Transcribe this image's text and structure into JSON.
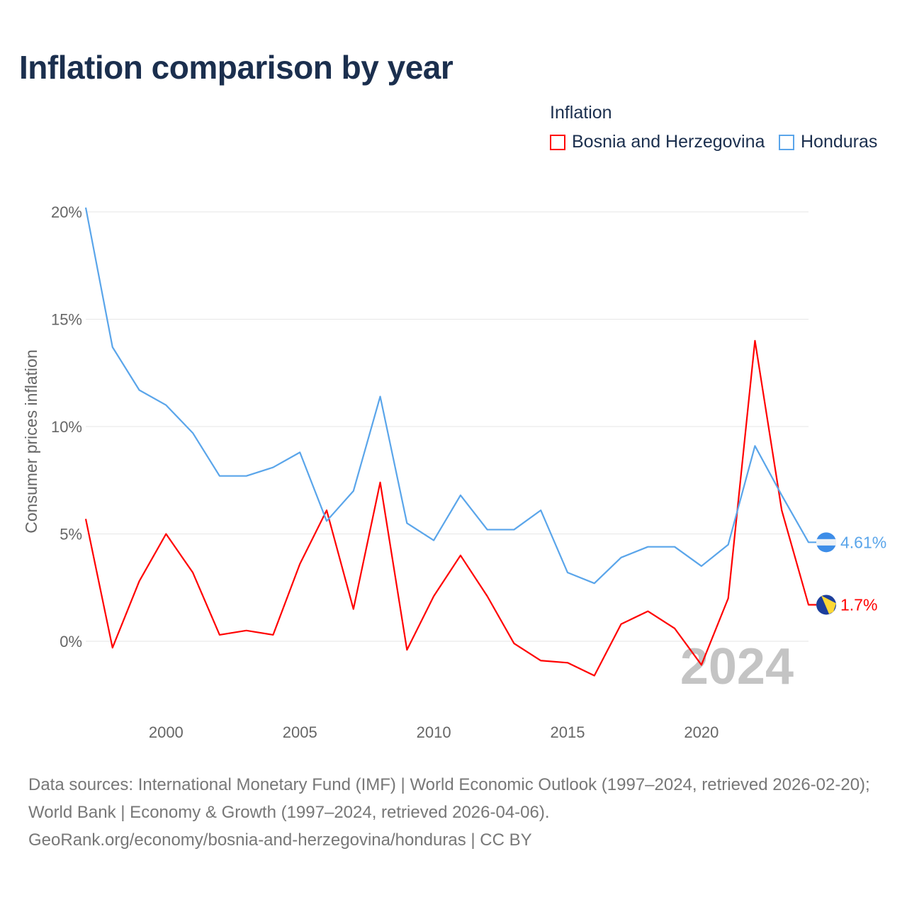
{
  "chart_data": {
    "type": "line",
    "title": "Inflation comparison by year",
    "legend_title": "Inflation",
    "ylabel": "Consumer prices inflation",
    "xlabel": "",
    "x": [
      1997,
      1998,
      1999,
      2000,
      2001,
      2002,
      2003,
      2004,
      2005,
      2006,
      2007,
      2008,
      2009,
      2010,
      2011,
      2012,
      2013,
      2014,
      2015,
      2016,
      2017,
      2018,
      2019,
      2020,
      2021,
      2022,
      2023,
      2024
    ],
    "ylim": [
      -3.5,
      21
    ],
    "xlim": [
      1997,
      2024
    ],
    "yticks": [
      0,
      5,
      10,
      15,
      20
    ],
    "ytick_labels": [
      "0%",
      "5%",
      "10%",
      "15%",
      "20%"
    ],
    "xticks": [
      2000,
      2005,
      2010,
      2015,
      2020
    ],
    "xtick_labels": [
      "2000",
      "2005",
      "2010",
      "2015",
      "2020"
    ],
    "grid": true,
    "legend_position": "top-right",
    "year_watermark": "2024",
    "series": [
      {
        "name": "Bosnia and Herzegovina",
        "color": "#ff0000",
        "end_label": "1.7%",
        "flag": "bosnia-flag",
        "values": [
          5.7,
          -0.3,
          2.8,
          5.0,
          3.2,
          0.3,
          0.5,
          0.3,
          3.6,
          6.1,
          1.5,
          7.4,
          -0.4,
          2.1,
          4.0,
          2.1,
          -0.1,
          -0.9,
          -1.0,
          -1.6,
          0.8,
          1.4,
          0.6,
          -1.1,
          2.0,
          14.0,
          6.1,
          1.7
        ]
      },
      {
        "name": "Honduras",
        "color": "#5aa5ea",
        "end_label": "4.61%",
        "flag": "honduras-flag",
        "values": [
          20.2,
          13.7,
          11.7,
          11.0,
          9.7,
          7.7,
          7.7,
          8.1,
          8.8,
          5.6,
          7.0,
          11.4,
          5.5,
          4.7,
          6.8,
          5.2,
          5.2,
          6.1,
          3.2,
          2.7,
          3.9,
          4.4,
          4.4,
          3.5,
          4.5,
          9.1,
          6.8,
          4.61
        ]
      }
    ]
  },
  "footer": {
    "line1": "Data sources: International Monetary Fund (IMF) | World Economic Outlook (1997–2024, retrieved 2026-02-20); World Bank | Economy & Growth (1997–2024, retrieved 2026-04-06).",
    "line2": "GeoRank.org/economy/bosnia-and-herzegovina/honduras | CC BY"
  }
}
